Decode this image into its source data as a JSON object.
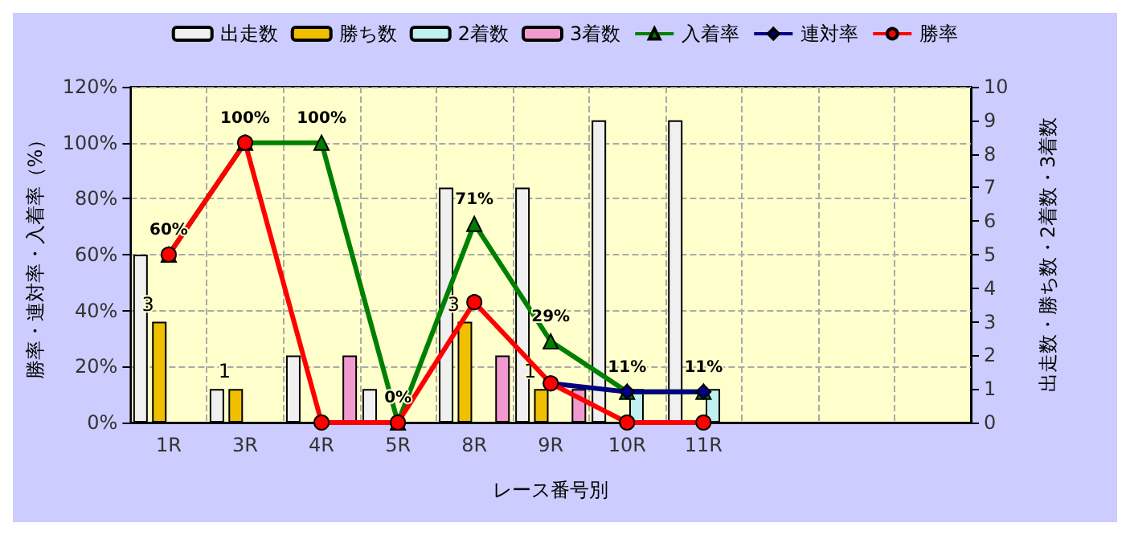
{
  "chart_data": {
    "type": "bar",
    "xlabel": "レース番号別",
    "ylabel": "勝率・連対率・入着率（%）",
    "y2label": "出走数・勝ち数・2着数・3着数",
    "categories": [
      "1R",
      "3R",
      "4R",
      "5R",
      "8R",
      "9R",
      "10R",
      "11R",
      null,
      null,
      null
    ],
    "series": [
      {
        "name": "出走数",
        "axis": "y2",
        "color": "#f0f0f0",
        "values": [
          5,
          1,
          2,
          1,
          7,
          7,
          9,
          9,
          null,
          null,
          null
        ]
      },
      {
        "name": "勝ち数",
        "axis": "y2",
        "color": "#f0c000",
        "values": [
          3,
          1,
          0,
          0,
          3,
          1,
          0,
          0,
          null,
          null,
          null
        ],
        "value_labels": [
          "3",
          "1",
          null,
          null,
          "3",
          "1",
          null,
          null,
          null,
          null,
          null
        ]
      },
      {
        "name": "2着数",
        "axis": "y2",
        "color": "#c0f0f0",
        "values": [
          0,
          0,
          0,
          0,
          0,
          0,
          1,
          1,
          null,
          null,
          null
        ]
      },
      {
        "name": "3着数",
        "axis": "y2",
        "color": "#f09ad0",
        "values": [
          0,
          0,
          2,
          0,
          2,
          1,
          0,
          0,
          null,
          null,
          null
        ]
      },
      {
        "name": "入着率",
        "type": "line",
        "axis": "y",
        "color": "#008000",
        "marker": "triangle",
        "values": [
          60,
          100,
          100,
          0,
          71,
          29,
          11,
          11,
          null,
          null,
          null
        ],
        "value_labels": [
          "60%",
          "100%",
          "100%",
          "0%",
          "71%",
          "29%",
          "11%",
          "11%",
          null,
          null,
          null
        ]
      },
      {
        "name": "連対率",
        "type": "line",
        "axis": "y",
        "color": "#000080",
        "marker": "diamond",
        "values": [
          null,
          null,
          null,
          null,
          null,
          14,
          11,
          11,
          null,
          null,
          null
        ]
      },
      {
        "name": "勝率",
        "type": "line",
        "axis": "y",
        "color": "#ff0000",
        "marker": "circle",
        "values": [
          60,
          100,
          0,
          0,
          43,
          14,
          0,
          0,
          null,
          null,
          null
        ]
      }
    ],
    "ylim": [
      0,
      120
    ],
    "yticks": [
      {
        "value": 0,
        "label": "0%"
      },
      {
        "value": 20,
        "label": "20%"
      },
      {
        "value": 40,
        "label": "40%"
      },
      {
        "value": 60,
        "label": "60%"
      },
      {
        "value": 80,
        "label": "80%"
      },
      {
        "value": 100,
        "label": "100%"
      },
      {
        "value": 120,
        "label": "120%"
      }
    ],
    "y2lim": [
      0,
      10
    ],
    "y2ticks": [
      0,
      1,
      2,
      3,
      4,
      5,
      6,
      7,
      8,
      9,
      10
    ],
    "grid": true,
    "legend": "top"
  }
}
